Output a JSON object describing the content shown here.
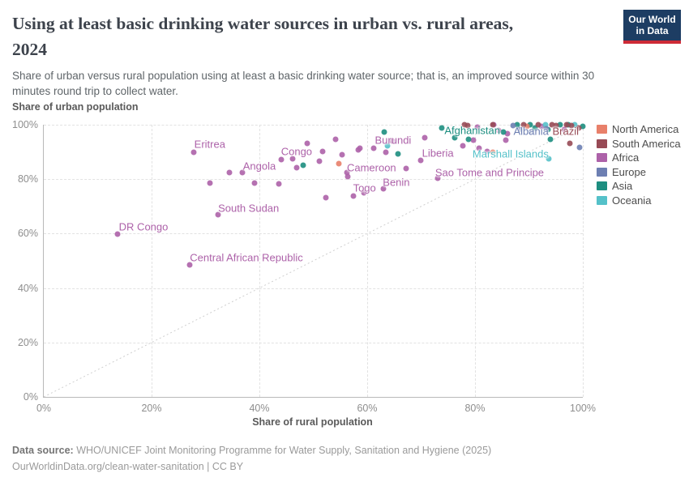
{
  "header": {
    "title_lines": [
      "Using at least basic drinking water sources in urban vs. rural areas,",
      "2024"
    ],
    "subtitle_lines": [
      "Share of urban versus rural population using at least a basic drinking water source; that is, an improved source within 30",
      "minutes round trip to collect water."
    ],
    "logo": {
      "line1": "Our World",
      "line2": "in Data"
    }
  },
  "colors": {
    "North America": "#E8806A",
    "South America": "#974A55",
    "Africa": "#AD62A9",
    "Europe": "#6D7FB2",
    "Asia": "#1D8E80",
    "Oceania": "#55C1C9",
    "logo_navy": "#1D3D63",
    "logo_red": "#CE2B37"
  },
  "legend": [
    {
      "label": "North America"
    },
    {
      "label": "South America"
    },
    {
      "label": "Africa"
    },
    {
      "label": "Europe"
    },
    {
      "label": "Asia"
    },
    {
      "label": "Oceania"
    }
  ],
  "chart_data": {
    "type": "scatter",
    "title": "Using at least basic drinking water sources in urban vs. rural areas, 2024",
    "xlabel": "Share of rural population",
    "ylabel": "Share of urban population",
    "xlim": [
      0,
      100
    ],
    "ylim": [
      0,
      100
    ],
    "grid": true,
    "diagonal_reference_line": true,
    "legend_position": "right",
    "x_ticks": [
      {
        "v": 0,
        "label": "0%"
      },
      {
        "v": 20,
        "label": "20%"
      },
      {
        "v": 40,
        "label": "40%"
      },
      {
        "v": 60,
        "label": "60%"
      },
      {
        "v": 80,
        "label": "80%"
      },
      {
        "v": 100,
        "label": "100%"
      }
    ],
    "y_ticks": [
      {
        "v": 0,
        "label": "0%"
      },
      {
        "v": 20,
        "label": "20%"
      },
      {
        "v": 40,
        "label": "40%"
      },
      {
        "v": 60,
        "label": "60%"
      },
      {
        "v": 80,
        "label": "80%"
      },
      {
        "v": 100,
        "label": "100%"
      }
    ],
    "series": [
      {
        "name": "Africa",
        "points": [
          [
            13.7,
            59.8
          ],
          [
            27.1,
            48.5
          ],
          [
            27.8,
            89.9
          ],
          [
            30.8,
            78.6
          ],
          [
            32.3,
            67
          ],
          [
            34.4,
            82.4
          ],
          [
            36.8,
            82.4
          ],
          [
            39.1,
            78.6
          ],
          [
            43.6,
            78.3
          ],
          [
            44.1,
            87.2
          ],
          [
            46.2,
            87.5
          ],
          [
            46.9,
            84.2
          ],
          [
            48.9,
            93.2
          ],
          [
            51.1,
            86.6
          ],
          [
            51.7,
            90.2
          ],
          [
            52.3,
            73.2
          ],
          [
            54.1,
            94.6
          ],
          [
            55.3,
            89
          ],
          [
            56.2,
            82.4
          ],
          [
            56.4,
            81
          ],
          [
            57.4,
            73.8
          ],
          [
            58.3,
            90.8
          ],
          [
            58.6,
            91.4
          ],
          [
            59.4,
            75
          ],
          [
            61.2,
            91.4
          ],
          [
            63,
            76.5
          ],
          [
            63.5,
            89.9
          ],
          [
            64.7,
            94
          ],
          [
            67.2,
            83.9
          ],
          [
            69.9,
            86.9
          ],
          [
            70.7,
            95.2
          ],
          [
            73.1,
            80.4
          ],
          [
            77.7,
            92.3
          ],
          [
            79.7,
            94.3
          ],
          [
            80.5,
            99.1
          ],
          [
            80.8,
            91.4
          ],
          [
            82.3,
            90.2
          ],
          [
            83.5,
            100
          ],
          [
            84.4,
            97.9
          ],
          [
            85.7,
            94.3
          ],
          [
            86,
            96.7
          ],
          [
            92.3,
            99.4
          ],
          [
            96.5,
            98.2
          ]
        ]
      },
      {
        "name": "Asia",
        "points": [
          [
            48.1,
            85.1
          ],
          [
            63.2,
            97.3
          ],
          [
            65.7,
            89.3
          ],
          [
            73.8,
            98.8
          ],
          [
            76.2,
            95.2
          ],
          [
            78.8,
            94.6
          ],
          [
            85.3,
            97.3
          ],
          [
            87.8,
            100
          ],
          [
            90.2,
            100
          ],
          [
            91.1,
            98.8
          ],
          [
            93.5,
            98.2
          ],
          [
            94,
            94.6
          ],
          [
            95.8,
            100
          ],
          [
            97.3,
            100
          ],
          [
            100,
            99.4
          ]
        ]
      },
      {
        "name": "Oceania",
        "points": [
          [
            63.8,
            92.3
          ],
          [
            93.1,
            100
          ],
          [
            93.7,
            87.5
          ],
          [
            98.5,
            100
          ]
        ]
      },
      {
        "name": "North America",
        "points": [
          [
            54.7,
            85.7
          ],
          [
            83.3,
            89.9
          ],
          [
            89.6,
            99.4
          ]
        ]
      },
      {
        "name": "South America",
        "points": [
          [
            78,
            100
          ],
          [
            78.6,
            99.7
          ],
          [
            83.3,
            100
          ],
          [
            89,
            100
          ],
          [
            91.7,
            100
          ],
          [
            94.3,
            100
          ],
          [
            95,
            99.7
          ],
          [
            97,
            100
          ],
          [
            97.6,
            93.2
          ],
          [
            97.9,
            99.7
          ],
          [
            99.2,
            98.8
          ]
        ]
      },
      {
        "name": "Europe",
        "points": [
          [
            87.1,
            99.7
          ],
          [
            88.3,
            98.2
          ],
          [
            90.4,
            97.3
          ],
          [
            93.2,
            98.5
          ],
          [
            99.4,
            91.7
          ]
        ]
      }
    ],
    "labels": [
      {
        "text": "Eritrea",
        "x": 30.8,
        "y": 92.9,
        "continent": "Africa"
      },
      {
        "text": "DR Congo",
        "x": 18.5,
        "y": 62.5,
        "continent": "Africa"
      },
      {
        "text": "Central African Republic",
        "x": 37.6,
        "y": 51.2,
        "continent": "Africa"
      },
      {
        "text": "South Sudan",
        "x": 38.0,
        "y": 69.3,
        "continent": "Africa"
      },
      {
        "text": "Angola",
        "x": 40.0,
        "y": 84.8,
        "continent": "Africa"
      },
      {
        "text": "Congo",
        "x": 46.9,
        "y": 90.2,
        "continent": "Africa"
      },
      {
        "text": "Cameroon",
        "x": 60.8,
        "y": 84.2,
        "continent": "Africa"
      },
      {
        "text": "Togo",
        "x": 59.5,
        "y": 76.8,
        "continent": "Africa"
      },
      {
        "text": "Benin",
        "x": 65.4,
        "y": 78.9,
        "continent": "Africa"
      },
      {
        "text": "Burundi",
        "x": 64.8,
        "y": 94.3,
        "continent": "Africa"
      },
      {
        "text": "Liberia",
        "x": 73.1,
        "y": 89.6,
        "continent": "Africa"
      },
      {
        "text": "Sao Tome and Principe",
        "x": 82.7,
        "y": 82.4,
        "continent": "Africa"
      },
      {
        "text": "Afghanistan",
        "x": 79.5,
        "y": 97.9,
        "continent": "Asia"
      },
      {
        "text": "Marshall Islands",
        "x": 86.6,
        "y": 89.3,
        "continent": "Oceania"
      },
      {
        "text": "Albania",
        "x": 90.4,
        "y": 97.6,
        "continent": "Europe"
      },
      {
        "text": "Brazil",
        "x": 96.8,
        "y": 97.6,
        "continent": "South America"
      }
    ]
  },
  "footer": {
    "source_label": "Data source:",
    "source_text": " WHO/UNICEF Joint Monitoring Programme for Water Supply, Sanitation and Hygiene (2025)",
    "link_line": "OurWorldinData.org/clean-water-sanitation | CC BY"
  }
}
